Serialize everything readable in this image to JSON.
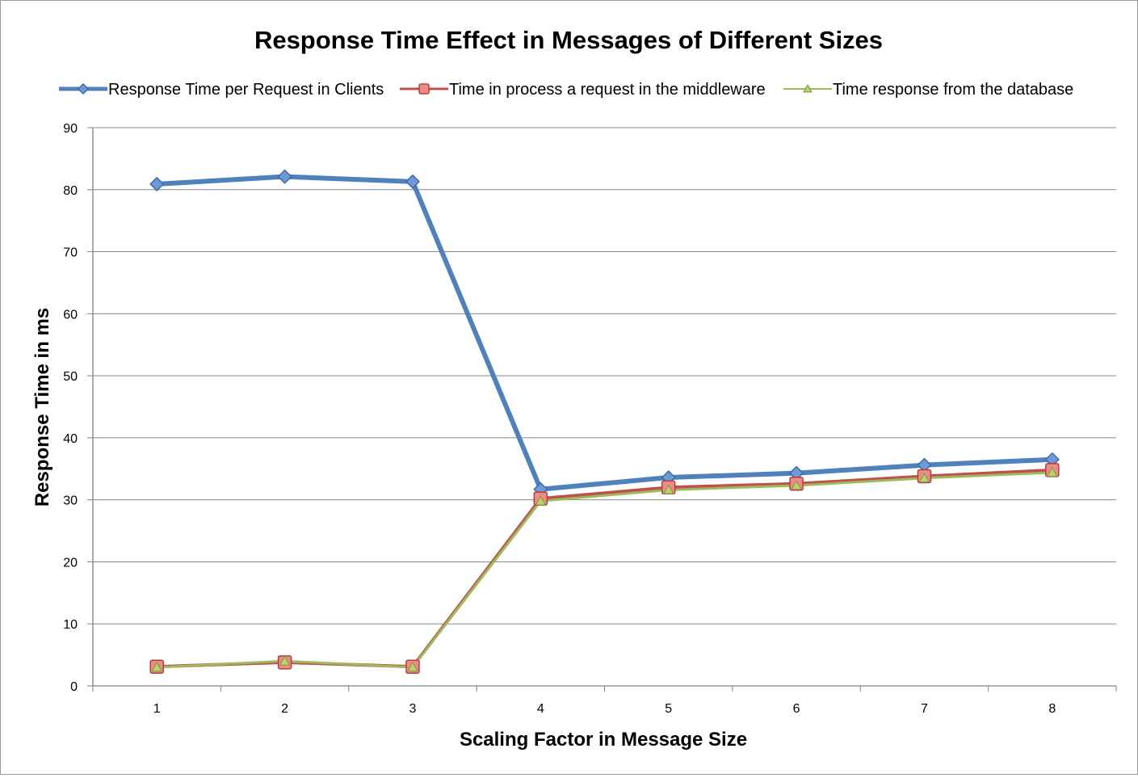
{
  "colors": {
    "clients": "#4f81bd",
    "middleware": "#c0504d",
    "database": "#9bbb59",
    "grid": "#888888",
    "axis": "#808080"
  },
  "chart_data": {
    "type": "line",
    "title": "Response Time Effect in Messages of Different Sizes",
    "xlabel": "Scaling Factor in Message Size",
    "ylabel": "Response Time in ms",
    "categories": [
      "1",
      "2",
      "3",
      "4",
      "5",
      "6",
      "7",
      "8"
    ],
    "ylim": [
      0,
      90
    ],
    "yticks": [
      "0",
      "10",
      "20",
      "30",
      "40",
      "50",
      "60",
      "70",
      "80",
      "90"
    ],
    "grid": true,
    "legend_position": "top",
    "series": [
      {
        "name": "Response Time per Request in Clients",
        "marker": "diamond",
        "color": "#4f81bd",
        "values": [
          80.9,
          82.1,
          81.3,
          31.7,
          33.6,
          34.3,
          35.6,
          36.5
        ]
      },
      {
        "name": "Time in process a request in the middleware",
        "marker": "square",
        "color": "#c0504d",
        "values": [
          3.1,
          3.8,
          3.1,
          30.2,
          32.0,
          32.6,
          33.8,
          34.8
        ]
      },
      {
        "name": "Time response from the database",
        "marker": "triangle",
        "color": "#9bbb59",
        "values": [
          3.0,
          4.0,
          3.0,
          29.8,
          31.6,
          32.3,
          33.5,
          34.4
        ]
      }
    ]
  }
}
